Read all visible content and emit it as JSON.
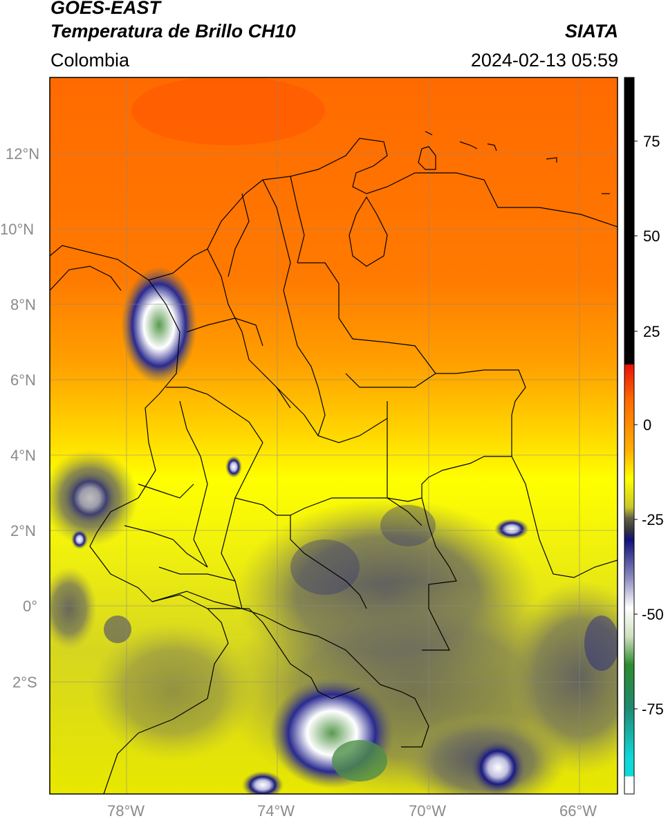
{
  "header": {
    "satellite": "GOES-EAST",
    "product": "Temperatura de Brillo CH10",
    "region": "Colombia",
    "agency": "SIATA",
    "datetime": "2024-02-13 05:59"
  },
  "map": {
    "lat_labels": [
      "12°N",
      "10°N",
      "8°N",
      "6°N",
      "4°N",
      "2°N",
      "0°",
      "2°S"
    ],
    "lon_labels": [
      "78°W",
      "74°W",
      "70°W",
      "66°W"
    ],
    "extent": {
      "lon_min": -80,
      "lon_max": -65,
      "lat_min": -5,
      "lat_max": 14
    }
  },
  "colorbar": {
    "ticks": [
      "75",
      "50",
      "25",
      "0",
      "-25",
      "-50",
      "-75"
    ],
    "tick_values": [
      75,
      50,
      25,
      0,
      -25,
      -50,
      -75
    ],
    "range": [
      -95,
      90
    ],
    "colors": {
      "above_10": "#000000",
      "red": "#e8120a",
      "orange": "#ff6a00",
      "yellow": "#ffff00",
      "olive": "#c8c82a",
      "navy": "#10107a",
      "white": "#ffffff",
      "green": "#2e8b2e",
      "cyan": "#10d8d8"
    }
  }
}
